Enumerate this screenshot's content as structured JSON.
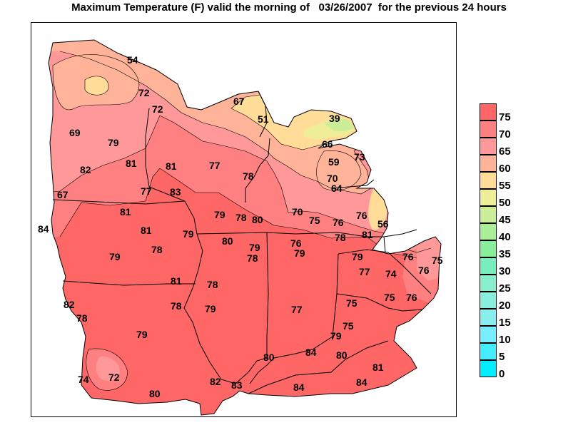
{
  "title": "Maximum Temperature (F) valid the morning of   03/26/2007  for the previous 24 hours",
  "legend": {
    "levels": [
      {
        "label": "75",
        "color": "#ff6666"
      },
      {
        "label": "70",
        "color": "#ff8080"
      },
      {
        "label": "65",
        "color": "#ff9999"
      },
      {
        "label": "60",
        "color": "#ffb399"
      },
      {
        "label": "55",
        "color": "#ffdd99"
      },
      {
        "label": "50",
        "color": "#eeee99"
      },
      {
        "label": "45",
        "color": "#ccee99"
      },
      {
        "label": "40",
        "color": "#aaee99"
      },
      {
        "label": "35",
        "color": "#88ee99"
      },
      {
        "label": "30",
        "color": "#77eebb"
      },
      {
        "label": "25",
        "color": "#88eecc"
      },
      {
        "label": "20",
        "color": "#88eedd"
      },
      {
        "label": "15",
        "color": "#88eeee"
      },
      {
        "label": "10",
        "color": "#77eeff"
      },
      {
        "label": "5",
        "color": "#44eeff"
      },
      {
        "label": "0",
        "color": "#00eeff"
      }
    ]
  },
  "station_values": [
    "54",
    "72",
    "72",
    "67",
    "51",
    "39",
    "69",
    "79",
    "81",
    "66",
    "73",
    "59",
    "82",
    "81",
    "77",
    "78",
    "70",
    "64",
    "67",
    "77",
    "83",
    "81",
    "79",
    "78",
    "80",
    "70",
    "75",
    "76",
    "76",
    "56",
    "84",
    "81",
    "79",
    "80",
    "79",
    "76",
    "78",
    "81",
    "79",
    "78",
    "79",
    "78",
    "79",
    "76",
    "77",
    "74",
    "76",
    "75",
    "81",
    "78",
    "78",
    "75",
    "82",
    "78",
    "79",
    "77",
    "75",
    "76",
    "79",
    "75",
    "79",
    "80",
    "84",
    "80",
    "81",
    "74",
    "72",
    "82",
    "83",
    "84",
    "84",
    "80"
  ]
}
